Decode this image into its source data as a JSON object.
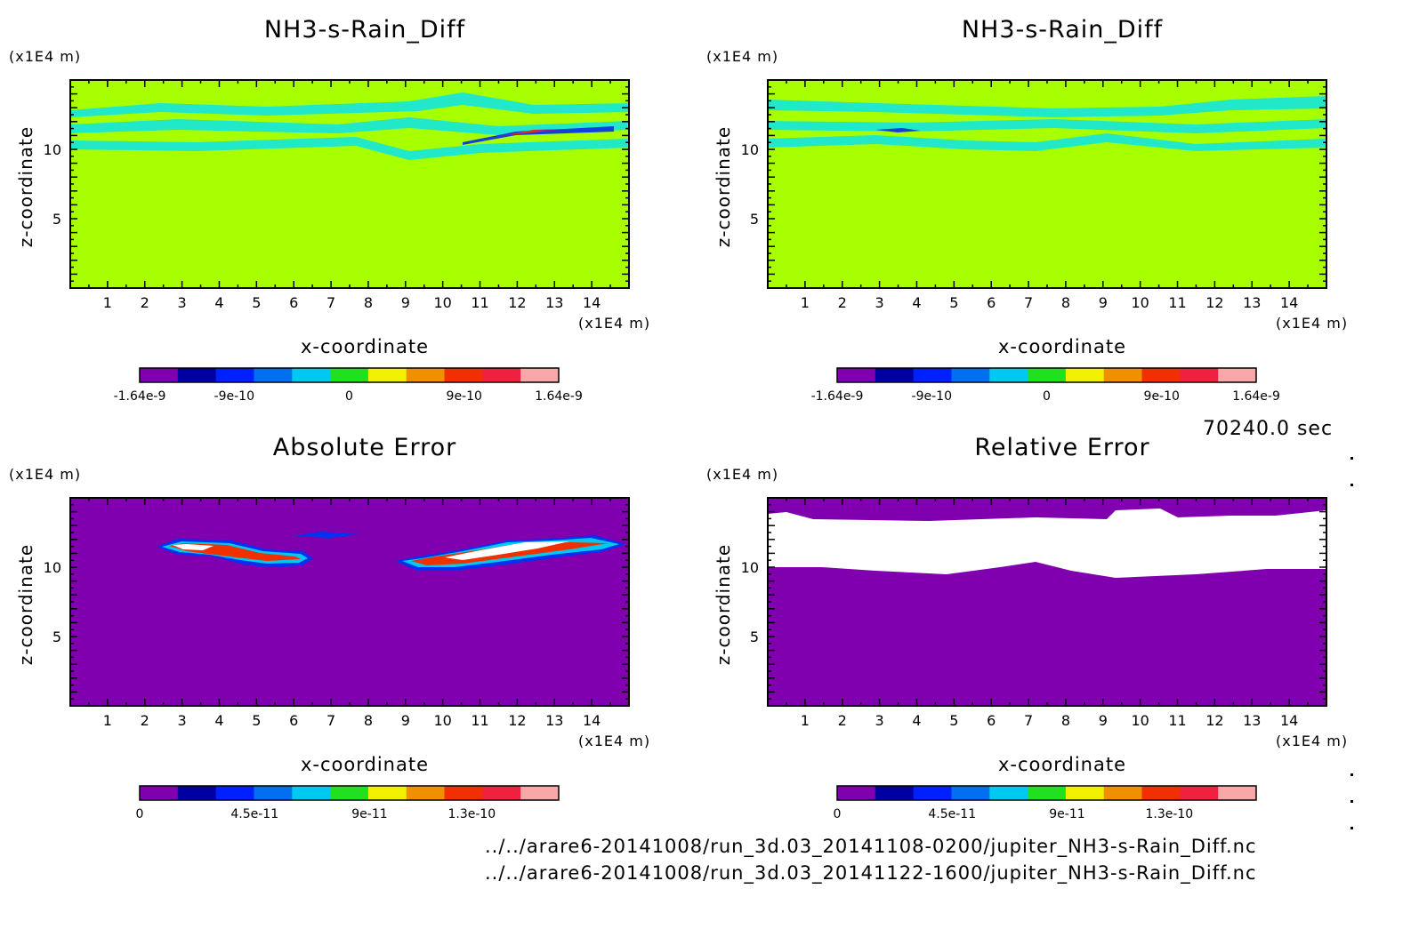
{
  "time_label": "70240.0 sec",
  "file_lines": [
    "../../arare6-20141008/run_3d.03_20141108-0200/jupiter_NH3-s-Rain_Diff.nc",
    "../../arare6-20141008/run_3d.03_20141122-1600/jupiter_NH3-s-Rain_Diff.nc"
  ],
  "colormap": [
    "#8000b0",
    "#0000a0",
    "#0020ff",
    "#0070f0",
    "#00c8f0",
    "#20e020",
    "#f0f000",
    "#f09000",
    "#f03000",
    "#f02040",
    "#f8a8a8"
  ],
  "chart_data": [
    {
      "type": "heatmap",
      "title": "NH3-s-Rain_Diff",
      "xlabel": "x-coordinate",
      "ylabel": "z-coordinate",
      "x_unit": "(x1E4 m)",
      "y_unit": "(x1E4 m)",
      "xlim": [
        0,
        15
      ],
      "ylim": [
        0,
        15
      ],
      "xticks": [
        "1",
        "2",
        "3",
        "4",
        "5",
        "6",
        "7",
        "8",
        "9",
        "10",
        "11",
        "12",
        "13",
        "14"
      ],
      "yticks": [
        "5",
        "10"
      ],
      "background": "#a8ff00",
      "colorbar_labels": [
        "-1.64e-9",
        "-9e-10",
        "0",
        "9e-10",
        "1.64e-9"
      ],
      "colorbar_range": [
        -1.64e-09,
        1.64e-09
      ],
      "description": "near-zero field (yellow-green) with thin cyan layers between z=9.5 and z=14; a narrow negative streak near x=11.5-13, z=11.5"
    },
    {
      "type": "heatmap",
      "title": "NH3-s-Rain_Diff",
      "xlabel": "x-coordinate",
      "ylabel": "z-coordinate",
      "x_unit": "(x1E4 m)",
      "y_unit": "(x1E4 m)",
      "xlim": [
        0,
        15
      ],
      "ylim": [
        0,
        15
      ],
      "xticks": [
        "1",
        "2",
        "3",
        "4",
        "5",
        "6",
        "7",
        "8",
        "9",
        "10",
        "11",
        "12",
        "13",
        "14"
      ],
      "yticks": [
        "5",
        "10"
      ],
      "background": "#a8ff00",
      "colorbar_labels": [
        "-1.64e-9",
        "-9e-10",
        "0",
        "9e-10",
        "1.64e-9"
      ],
      "colorbar_range": [
        -1.64e-09,
        1.64e-09
      ],
      "description": "near-zero field with thin cyan layers between z=10 and z=14; small negative streak near x=3.5, z=11.3"
    },
    {
      "type": "heatmap",
      "title": "Absolute Error",
      "xlabel": "x-coordinate",
      "ylabel": "z-coordinate",
      "x_unit": "(x1E4 m)",
      "y_unit": "(x1E4 m)",
      "xlim": [
        0,
        15
      ],
      "ylim": [
        0,
        15
      ],
      "xticks": [
        "1",
        "2",
        "3",
        "4",
        "5",
        "6",
        "7",
        "8",
        "9",
        "10",
        "11",
        "12",
        "13",
        "14"
      ],
      "yticks": [
        "5",
        "10"
      ],
      "background": "#8000b0",
      "colorbar_labels": [
        "0",
        "4.5e-11",
        "9e-11",
        "1.3e-10"
      ],
      "colorbar_range": [
        0,
        1.64e-10
      ],
      "description": "zero everywhere except two blobs of high error (white core) at x=2.5-6.5, z=10-12 and x=8.8-14.8, z=9.8-12"
    },
    {
      "type": "heatmap",
      "title": "Relative Error",
      "xlabel": "x-coordinate",
      "ylabel": "z-coordinate",
      "x_unit": "(x1E4 m)",
      "y_unit": "(x1E4 m)",
      "xlim": [
        0,
        15
      ],
      "ylim": [
        0,
        15
      ],
      "xticks": [
        "1",
        "2",
        "3",
        "4",
        "5",
        "6",
        "7",
        "8",
        "9",
        "10",
        "11",
        "12",
        "13",
        "14"
      ],
      "yticks": [
        "5",
        "10"
      ],
      "background": "#8000b0",
      "colorbar_labels": [
        "0",
        "4.5e-11",
        "9e-11",
        "1.3e-10"
      ],
      "colorbar_range": [
        0,
        1.64e-10
      ],
      "description": "zero below about z=10 and above about z=13.5; a white (out-of-range) band between"
    }
  ]
}
